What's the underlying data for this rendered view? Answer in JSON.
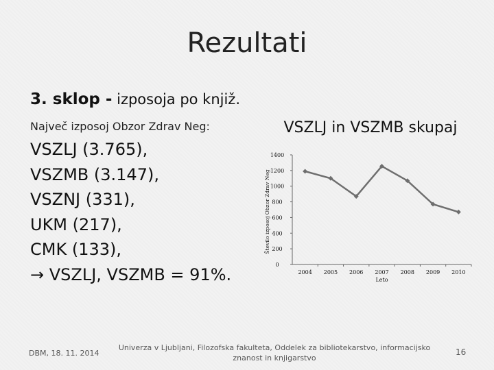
{
  "slide": {
    "title": "Rezultati",
    "heading_bold": "3. sklop -",
    "heading_rest": " izposoja po knjiž.",
    "subheading": "Največ izposoj Obzor Zdrav Neg:",
    "items": [
      "VSZLJ (3.765),",
      "VSZMB (3.147),",
      "VSZNJ (331),",
      "UKM (217),",
      "CMK (133),",
      "→ VSZLJ, VSZMB = 91%."
    ]
  },
  "footer": {
    "date": "DBM, 18. 11. 2014",
    "institution": "Univerza v Ljubljani, Filozofska fakulteta, Oddelek za bibliotekarstvo, informacijsko znanost in knjigarstvo",
    "page": "16"
  },
  "chart_data": {
    "type": "line",
    "title": "VSZLJ in VSZMB skupaj",
    "xlabel": "Leto",
    "ylabel": "Število izposoj Obzor Zdrav Neg",
    "x": [
      "2004",
      "2005",
      "2006",
      "2007",
      "2008",
      "2009",
      "2010"
    ],
    "series": [
      {
        "values": [
          1190,
          1100,
          870,
          1255,
          1070,
          770,
          670
        ]
      }
    ],
    "ylim": [
      0,
      1400
    ],
    "yticks": [
      "0",
      "200",
      "400",
      "600",
      "800",
      "1000",
      "1200",
      "1400"
    ],
    "grid": false,
    "legend": "none",
    "line_color": "#6e6e6e",
    "marker": "diamond"
  }
}
